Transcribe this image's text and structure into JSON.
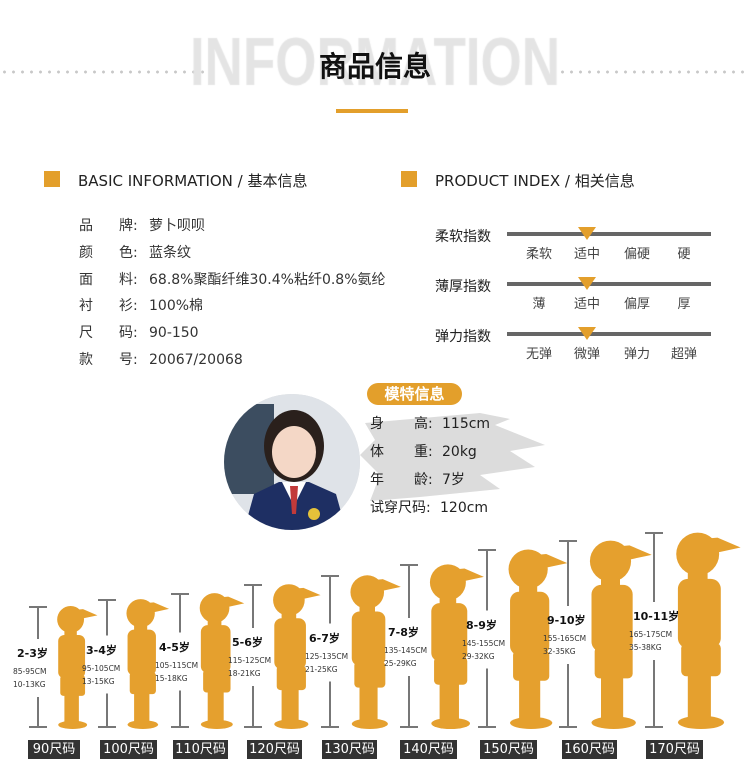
{
  "header": {
    "watermark": "INFORMATION",
    "title": "商品信息"
  },
  "accent_color": "#e39f2b",
  "basic": {
    "title": "BASIC INFORMATION / 基本信息",
    "rows": [
      {
        "c1": "品",
        "c2": "牌:",
        "value": "萝卜呗呗"
      },
      {
        "c1": "颜",
        "c2": "色:",
        "value": "蓝条纹"
      },
      {
        "c1": "面",
        "c2": "料:",
        "value": "68.8%聚酯纤维30.4%粘纤0.8%氨纶"
      },
      {
        "c1": "衬",
        "c2": "衫:",
        "value": "100%棉"
      },
      {
        "c1": "尺",
        "c2": "码:",
        "value": "90-150"
      },
      {
        "c1": "款",
        "c2": "号:",
        "value": "20067/20068"
      }
    ]
  },
  "index": {
    "title": "PRODUCT INDEX / 相关信息",
    "items": [
      {
        "label": "柔软指数",
        "options": [
          "柔软",
          "适中",
          "偏硬",
          "硬"
        ],
        "selected": 1
      },
      {
        "label": "薄厚指数",
        "options": [
          "薄",
          "适中",
          "偏厚",
          "厚"
        ],
        "selected": 1
      },
      {
        "label": "弹力指数",
        "options": [
          "无弹",
          "微弹",
          "弹力",
          "超弹"
        ],
        "selected": 1
      }
    ]
  },
  "model": {
    "badge": "模特信息",
    "rows": [
      {
        "k1": "身",
        "k2": "高:",
        "value": "115cm"
      },
      {
        "k1": "体",
        "k2": "重:",
        "value": "20kg"
      },
      {
        "k1": "年",
        "k2": "龄:",
        "value": "7岁"
      },
      {
        "k1": "试穿尺码:",
        "k2": "",
        "value": "120cm"
      }
    ]
  },
  "sizes": [
    {
      "label": "90尺码",
      "age": "2-3岁",
      "height": "85-95CM",
      "weight": "10-13KG"
    },
    {
      "label": "100尺码",
      "age": "3-4岁",
      "height": "95-105CM",
      "weight": "13-15KG"
    },
    {
      "label": "110尺码",
      "age": "4-5岁",
      "height": "105-115CM",
      "weight": "15-18KG"
    },
    {
      "label": "120尺码",
      "age": "5-6岁",
      "height": "115-125CM",
      "weight": "18-21KG"
    },
    {
      "label": "130尺码",
      "age": "6-7岁",
      "height": "125-135CM",
      "weight": "21-25KG"
    },
    {
      "label": "140尺码",
      "age": "7-8岁",
      "height": "135-145CM",
      "weight": "25-29KG"
    },
    {
      "label": "150尺码",
      "age": "8-9岁",
      "height": "145-155CM",
      "weight": "29-32KG"
    },
    {
      "label": "160尺码",
      "age": "9-10岁",
      "height": "155-165CM",
      "weight": "32-35KG"
    },
    {
      "label": "170尺码",
      "age": "10-11岁",
      "height": "165-175CM",
      "weight": "35-38KG"
    }
  ]
}
